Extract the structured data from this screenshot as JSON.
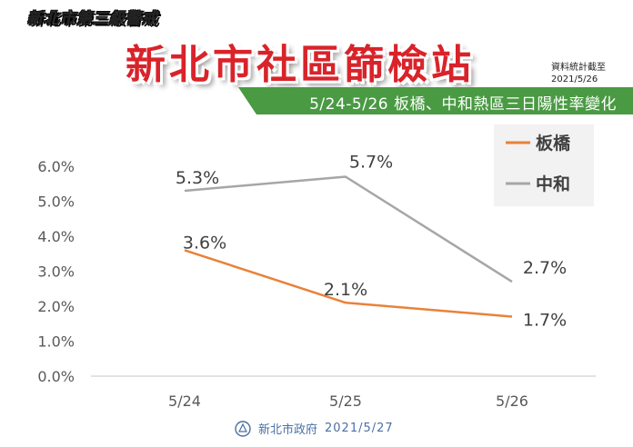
{
  "header": {
    "tag": "新北市第三級警戒",
    "title": "新北市社區篩檢站",
    "note_line1": "資料統計截至",
    "note_line2": "2021/5/26",
    "banner": "5/24-5/26 板橋、中和熱區三日陽性率變化"
  },
  "footer": {
    "logo_text": "新北市政府",
    "date": "2021/5/27"
  },
  "colors": {
    "banqiao": "#e8823a",
    "zhonghe": "#a6a6a6",
    "grid": "#d9d9d9",
    "legend_bg": "#f2f2f2",
    "red": "#d9232a",
    "green": "#4a9a43"
  },
  "chart_data": {
    "type": "line",
    "categories": [
      "5/24",
      "5/25",
      "5/26"
    ],
    "series": [
      {
        "name": "板橋",
        "values": [
          3.6,
          2.1,
          1.7
        ],
        "labels": [
          "3.6%",
          "2.1%",
          "1.7%"
        ]
      },
      {
        "name": "中和",
        "values": [
          5.3,
          5.7,
          2.7
        ],
        "labels": [
          "5.3%",
          "5.7%",
          "2.7%"
        ]
      }
    ],
    "yticks": [
      "0.0%",
      "1.0%",
      "2.0%",
      "3.0%",
      "4.0%",
      "5.0%",
      "6.0%"
    ],
    "ylim": [
      0,
      6
    ],
    "grid": false,
    "legend_position": "top-right"
  }
}
